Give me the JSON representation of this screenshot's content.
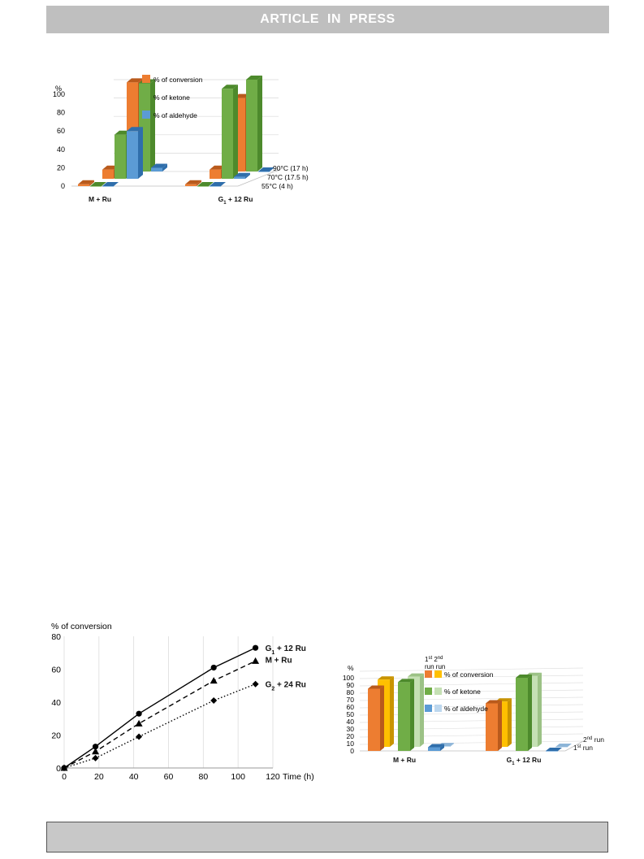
{
  "header": {
    "title": "ARTICLE IN PRESS"
  },
  "colors": {
    "conversion_front": "#ed7d31",
    "conversion_side": "#b95a1c",
    "ketone_front": "#70ad47",
    "ketone_side": "#4d8a2c",
    "aldehyde_front": "#5b9bd5",
    "aldehyde_side": "#2f6eab",
    "yellow_front": "#ffc000",
    "yellow_side": "#c99400",
    "lightgreen_front": "#c5e0b4",
    "lightgreen_side": "#9cc286",
    "lightblue_front": "#bdd7ee",
    "lightblue_side": "#8db5d8"
  },
  "chart_data": [
    {
      "type": "bar",
      "title": "",
      "ylabel": "%",
      "ylim": [
        0,
        100
      ],
      "yticks": [
        "0",
        "20",
        "40",
        "60",
        "80",
        "100"
      ],
      "categories": [
        "M + Ru",
        "G1 + 12 Ru"
      ],
      "category_labels": [
        {
          "main": "M + Ru",
          "sub": ""
        },
        {
          "main": "G",
          "sub": "1",
          "rest": " + 12 Ru"
        }
      ],
      "depth_labels": [
        "55°C (4 h)",
        "70°C (17.5 h)",
        "90°C (17 h)"
      ],
      "legend": [
        "% of conversion",
        "% of ketone",
        "% of aldehyde"
      ],
      "series": [
        {
          "name": "% of conversion",
          "depth": "55°C (4 h)",
          "values": [
            2,
            2
          ]
        },
        {
          "name": "% of ketone",
          "depth": "55°C (4 h)",
          "values": [
            0,
            0
          ]
        },
        {
          "name": "% of aldehyde",
          "depth": "55°C (4 h)",
          "values": [
            0,
            0
          ]
        },
        {
          "name": "% of conversion",
          "depth": "70°C (17.5 h)",
          "values": [
            10,
            10
          ]
        },
        {
          "name": "% of ketone",
          "depth": "70°C (17.5 h)",
          "values": [
            48,
            98
          ]
        },
        {
          "name": "% of aldehyde",
          "depth": "70°C (17.5 h)",
          "values": [
            52,
            2
          ]
        },
        {
          "name": "% of conversion",
          "depth": "90°C (17 h)",
          "values": [
            97,
            80
          ]
        },
        {
          "name": "% of ketone",
          "depth": "90°C (17 h)",
          "values": [
            96,
            100
          ]
        },
        {
          "name": "% of aldehyde",
          "depth": "90°C (17 h)",
          "values": [
            4,
            0
          ]
        }
      ]
    },
    {
      "type": "line",
      "title": "",
      "ylabel": "% of conversion",
      "xlabel": "Time (h)",
      "xlim": [
        0,
        120
      ],
      "ylim": [
        0,
        80
      ],
      "xticks": [
        "0",
        "20",
        "40",
        "60",
        "80",
        "100",
        "120"
      ],
      "yticks": [
        "0",
        "20",
        "40",
        "60",
        "80"
      ],
      "series": [
        {
          "name": "G1 + 12 Ru",
          "label": {
            "main": "G",
            "sub": "1",
            "rest": " + 12 Ru"
          },
          "marker": "circle",
          "line": "solid",
          "x": [
            0,
            18,
            43,
            86,
            110
          ],
          "y": [
            0,
            13,
            33,
            61,
            73
          ]
        },
        {
          "name": "M + Ru",
          "label": {
            "main": "M + Ru",
            "sub": "",
            "rest": ""
          },
          "marker": "triangle",
          "line": "dashed",
          "x": [
            0,
            18,
            43,
            86,
            110
          ],
          "y": [
            0,
            10,
            27,
            53,
            65
          ]
        },
        {
          "name": "G2 + 24 Ru",
          "label": {
            "main": "G",
            "sub": "2",
            "rest": " + 24 Ru"
          },
          "marker": "diamond",
          "line": "dotted",
          "x": [
            0,
            18,
            43,
            86,
            110
          ],
          "y": [
            0,
            6,
            19,
            41,
            51
          ]
        }
      ]
    },
    {
      "type": "bar",
      "title": "",
      "ylabel": "%",
      "ylim": [
        0,
        100
      ],
      "yticks": [
        "0",
        "10",
        "20",
        "30",
        "40",
        "50",
        "60",
        "70",
        "80",
        "90",
        "100"
      ],
      "categories": [
        "M + Ru",
        "G1 + 12 Ru"
      ],
      "category_labels": [
        {
          "main": "M + Ru",
          "sub": ""
        },
        {
          "main": "G",
          "sub": "1",
          "rest": " + 12 Ru"
        }
      ],
      "run_header": {
        "first": "1",
        "first_sup": "st",
        "second": "2",
        "second_sup": "nd",
        "word": "run run"
      },
      "depth_labels": [
        {
          "main": "1",
          "sup": "st",
          "rest": " run"
        },
        {
          "main": "2",
          "sup": "nd",
          "rest": " run"
        }
      ],
      "legend": [
        "% of conversion",
        "% of ketone",
        "% of aldehyde"
      ],
      "series": [
        {
          "name": "% of conversion",
          "run": "1st run",
          "values": [
            85,
            65
          ]
        },
        {
          "name": "% of conversion",
          "run": "2nd run",
          "values": [
            92,
            62
          ]
        },
        {
          "name": "% of ketone",
          "run": "1st run",
          "values": [
            94,
            100
          ]
        },
        {
          "name": "% of ketone",
          "run": "2nd run",
          "values": [
            96,
            97
          ]
        },
        {
          "name": "% of aldehyde",
          "run": "1st run",
          "values": [
            5,
            0
          ]
        },
        {
          "name": "% of aldehyde",
          "run": "2nd run",
          "values": [
            1,
            0
          ]
        }
      ]
    }
  ]
}
